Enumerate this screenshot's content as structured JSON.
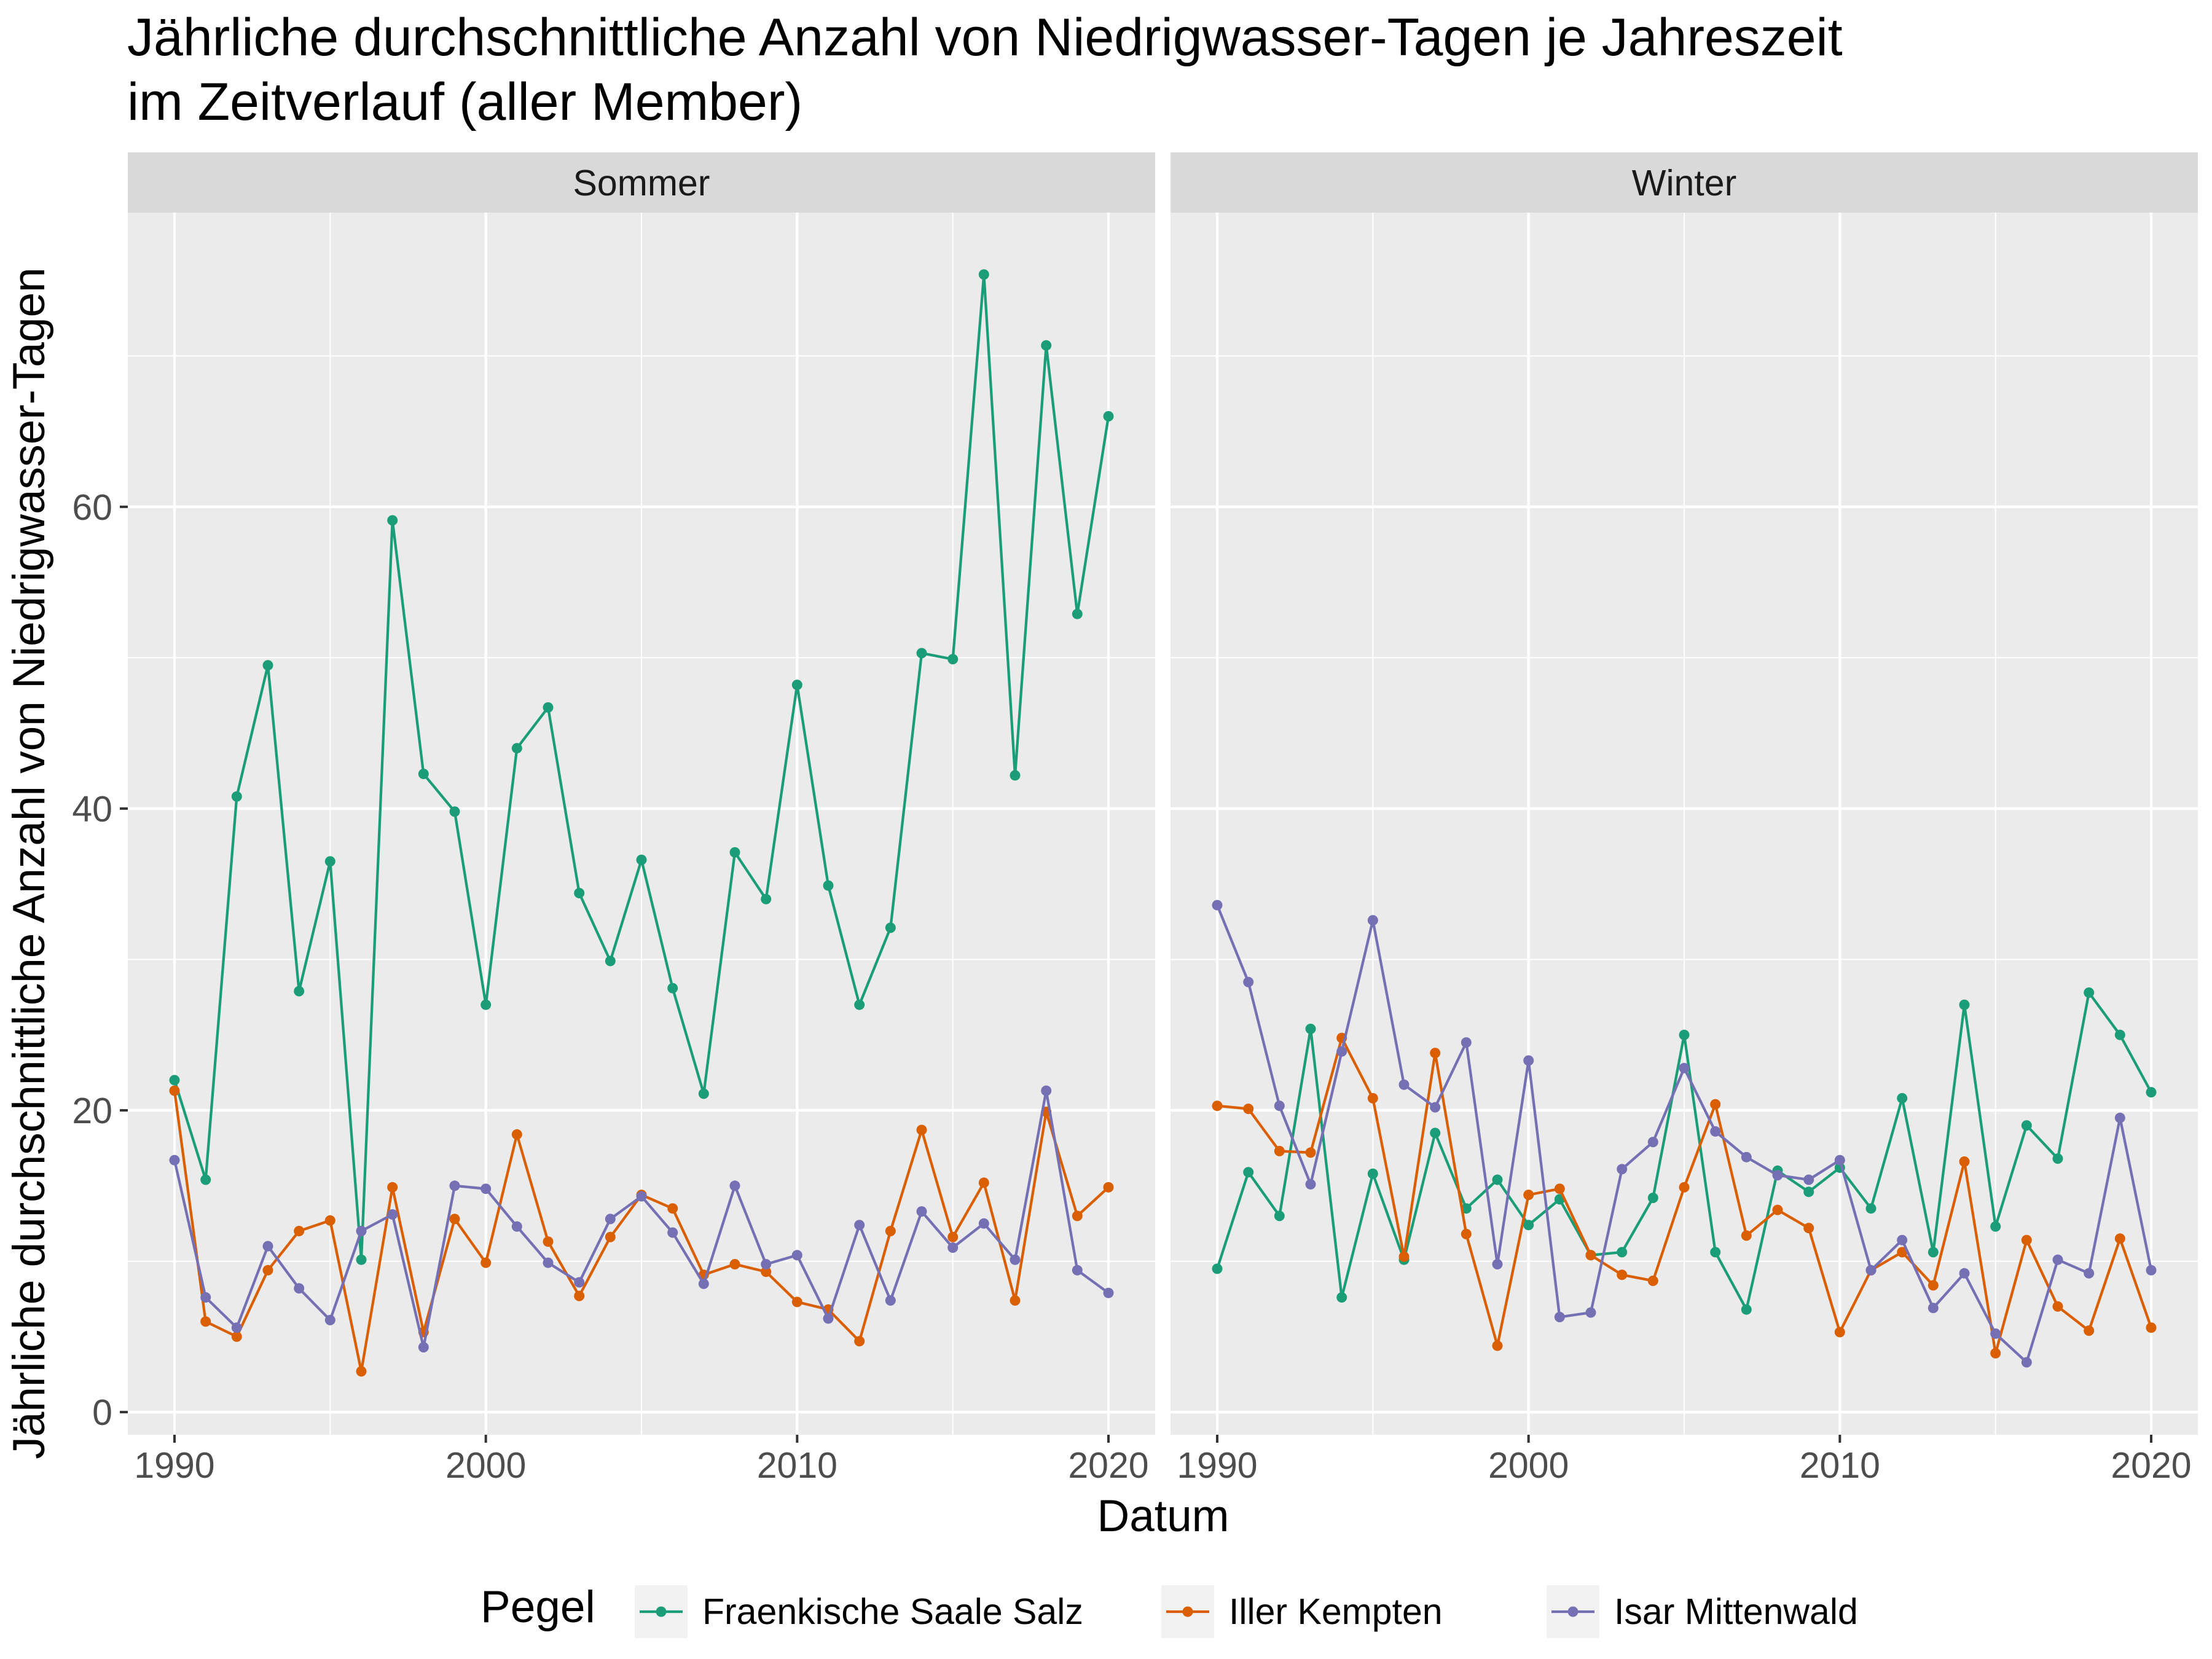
{
  "title": "Jährliche durchschnittliche Anzahl von Niedrigwasser-Tagen je Jahreszeit im Zeitverlauf (aller Member)",
  "title_lines": [
    "Jährliche durchschnittliche Anzahl von Niedrigwasser-Tagen je Jahreszeit",
    "im Zeitverlauf (aller Member)"
  ],
  "legend": {
    "title": "Pegel",
    "items": [
      {
        "name": "Fraenkische Saale Salz",
        "color": "#1B9E77"
      },
      {
        "name": "Iller Kempten",
        "color": "#D95F02"
      },
      {
        "name": "Isar Mittenwald",
        "color": "#7570B3"
      }
    ]
  },
  "chart_data": {
    "type": "line",
    "xlabel": "Datum",
    "ylabel": "Jährliche durchschnittliche Anzahl von Niedrigwasser-Tagen",
    "xlim": [
      1988.5,
      2021.5
    ],
    "ylim": [
      -1.5,
      79.5
    ],
    "xticks": [
      1990,
      2000,
      2010,
      2020
    ],
    "yticks": [
      0,
      20,
      40,
      60
    ],
    "grid": true,
    "legend_position": "bottom",
    "panels": [
      {
        "name": "Sommer",
        "x": [
          1990,
          1991,
          1992,
          1993,
          1994,
          1995,
          1996,
          1997,
          1998,
          1999,
          2000,
          2001,
          2002,
          2003,
          2004,
          2005,
          2006,
          2007,
          2008,
          2009,
          2010,
          2011,
          2012,
          2013,
          2014,
          2015,
          2016,
          2017,
          2018,
          2019,
          2020
        ],
        "series": [
          {
            "name": "Fraenkische Saale Salz",
            "color": "#1B9E77",
            "values": [
              22.0,
              15.4,
              40.8,
              49.5,
              27.9,
              36.5,
              10.1,
              59.1,
              42.3,
              39.8,
              27.0,
              44.0,
              46.7,
              34.4,
              29.9,
              36.6,
              28.1,
              21.1,
              37.1,
              34.0,
              48.2,
              34.9,
              27.0,
              32.1,
              50.3,
              49.9,
              75.4,
              42.2,
              70.7,
              52.9,
              66.0
            ]
          },
          {
            "name": "Iller Kempten",
            "color": "#D95F02",
            "values": [
              21.3,
              6.0,
              5.0,
              9.4,
              12.0,
              12.7,
              2.7,
              14.9,
              5.3,
              12.8,
              9.9,
              18.4,
              11.3,
              7.7,
              11.6,
              14.4,
              13.5,
              9.1,
              9.8,
              9.3,
              7.3,
              6.8,
              4.7,
              12.0,
              18.7,
              11.6,
              15.2,
              7.4,
              19.9,
              13.0,
              14.9
            ]
          },
          {
            "name": "Isar Mittenwald",
            "color": "#7570B3",
            "values": [
              16.7,
              7.6,
              5.6,
              11.0,
              8.2,
              6.1,
              12.0,
              13.1,
              4.3,
              15.0,
              14.8,
              12.3,
              9.9,
              8.6,
              12.8,
              14.3,
              11.9,
              8.5,
              15.0,
              9.8,
              10.4,
              6.2,
              12.4,
              7.4,
              13.3,
              10.9,
              12.5,
              10.1,
              21.3,
              9.4,
              7.9
            ]
          }
        ]
      },
      {
        "name": "Winter",
        "x": [
          1990,
          1991,
          1992,
          1993,
          1994,
          1995,
          1996,
          1997,
          1998,
          1999,
          2000,
          2001,
          2002,
          2003,
          2004,
          2005,
          2006,
          2007,
          2008,
          2009,
          2010,
          2011,
          2012,
          2013,
          2014,
          2015,
          2016,
          2017,
          2018,
          2019,
          2020
        ],
        "series": [
          {
            "name": "Fraenkische Saale Salz",
            "color": "#1B9E77",
            "values": [
              9.5,
              15.9,
              13.0,
              25.4,
              7.6,
              15.8,
              10.1,
              18.5,
              13.5,
              15.4,
              12.4,
              14.1,
              10.4,
              10.6,
              14.2,
              25.0,
              10.6,
              6.8,
              16.0,
              14.6,
              16.2,
              13.5,
              20.8,
              10.6,
              27.0,
              12.3,
              19.0,
              16.8,
              27.8,
              25.0,
              21.2
            ]
          },
          {
            "name": "Iller Kempten",
            "color": "#D95F02",
            "values": [
              20.3,
              20.1,
              17.3,
              17.2,
              24.8,
              20.8,
              10.3,
              23.8,
              11.8,
              4.4,
              14.4,
              14.8,
              10.4,
              9.1,
              8.7,
              14.9,
              20.4,
              11.7,
              13.4,
              12.2,
              5.3,
              9.4,
              10.6,
              8.4,
              16.6,
              3.9,
              11.4,
              7.0,
              5.4,
              11.5,
              5.6
            ]
          },
          {
            "name": "Isar Mittenwald",
            "color": "#7570B3",
            "values": [
              33.6,
              28.5,
              20.3,
              15.1,
              23.9,
              32.6,
              21.7,
              20.2,
              24.5,
              9.8,
              23.3,
              6.3,
              6.6,
              16.1,
              17.9,
              22.8,
              18.6,
              16.9,
              15.7,
              15.4,
              16.7,
              9.4,
              11.4,
              6.9,
              9.2,
              5.2,
              3.3,
              10.1,
              9.2,
              19.5,
              9.4
            ]
          }
        ]
      }
    ]
  }
}
